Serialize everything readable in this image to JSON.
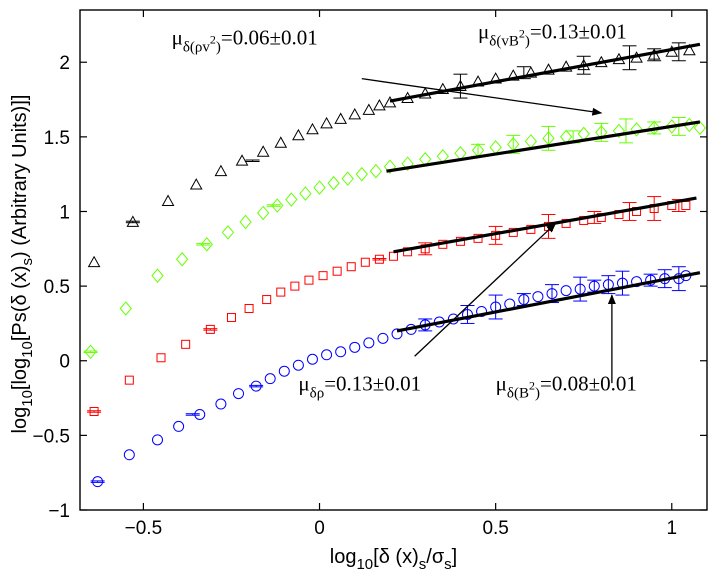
{
  "chart_data": {
    "type": "scatter",
    "xlabel": "log10[δ (x)s/σs]",
    "ylabel": "log10[log10[Ps(δ (x)s) (Arbitrary Units)]]",
    "xlim": [
      -0.68,
      1.1
    ],
    "ylim": [
      -1,
      2.35
    ],
    "xticks": [
      -0.5,
      0,
      0.5,
      1
    ],
    "xtick_labels": [
      "−0.5",
      "0",
      "0.5",
      "1"
    ],
    "yticks": [
      -1,
      -0.5,
      0,
      0.5,
      1,
      1.5,
      2
    ],
    "ytick_labels": [
      "−1",
      "−0.5",
      "0",
      "0.5",
      "1",
      "1.5",
      "2"
    ],
    "series": [
      {
        "name": "δ(vB²)",
        "marker": "triangle",
        "color": "#000000",
        "x": [
          -0.64,
          -0.53,
          -0.43,
          -0.35,
          -0.28,
          -0.22,
          -0.16,
          -0.11,
          -0.06,
          -0.02,
          0.02,
          0.06,
          0.1,
          0.14,
          0.17,
          0.2,
          0.25,
          0.3,
          0.35,
          0.4,
          0.45,
          0.5,
          0.55,
          0.6,
          0.65,
          0.7,
          0.75,
          0.8,
          0.85,
          0.9,
          0.95,
          1.0,
          1.05
        ],
        "y": [
          0.66,
          0.93,
          1.07,
          1.18,
          1.27,
          1.34,
          1.4,
          1.46,
          1.51,
          1.55,
          1.59,
          1.62,
          1.65,
          1.68,
          1.71,
          1.73,
          1.76,
          1.79,
          1.82,
          1.84,
          1.87,
          1.89,
          1.91,
          1.93,
          1.95,
          1.97,
          1.98,
          2.0,
          2.02,
          2.03,
          2.05,
          2.07,
          2.08
        ],
        "errorbar_x": [
          -0.53,
          -0.19,
          0.4,
          0.58,
          0.75,
          0.88,
          0.95,
          1.02
        ],
        "fit": {
          "x": [
            0.2,
            1.08
          ],
          "y": [
            1.74,
            2.12
          ]
        }
      },
      {
        "name": "δ(ρv²)",
        "marker": "diamond",
        "color": "#66ff00",
        "x": [
          -0.65,
          -0.55,
          -0.46,
          -0.39,
          -0.32,
          -0.26,
          -0.21,
          -0.16,
          -0.12,
          -0.08,
          -0.04,
          0.0,
          0.04,
          0.08,
          0.12,
          0.16,
          0.2,
          0.25,
          0.3,
          0.35,
          0.4,
          0.45,
          0.5,
          0.55,
          0.6,
          0.65,
          0.7,
          0.75,
          0.8,
          0.85,
          0.9,
          0.95,
          1.0,
          1.05,
          1.08
        ],
        "y": [
          0.06,
          0.35,
          0.57,
          0.68,
          0.78,
          0.86,
          0.93,
          0.99,
          1.04,
          1.08,
          1.12,
          1.16,
          1.19,
          1.22,
          1.25,
          1.27,
          1.3,
          1.32,
          1.35,
          1.37,
          1.39,
          1.41,
          1.43,
          1.45,
          1.47,
          1.49,
          1.5,
          1.52,
          1.53,
          1.54,
          1.55,
          1.56,
          1.57,
          1.58,
          1.56
        ],
        "errorbar_x": [
          -0.65,
          -0.33,
          -0.13,
          0.45,
          0.55,
          0.65,
          0.72,
          0.8,
          0.87,
          0.95,
          1.02
        ],
        "fit": {
          "x": [
            0.19,
            1.08
          ],
          "y": [
            1.27,
            1.6
          ]
        }
      },
      {
        "name": "δρ",
        "marker": "square",
        "color": "#ff0000",
        "x": [
          -0.64,
          -0.54,
          -0.45,
          -0.38,
          -0.31,
          -0.25,
          -0.2,
          -0.15,
          -0.11,
          -0.07,
          -0.03,
          0.01,
          0.05,
          0.09,
          0.13,
          0.17,
          0.21,
          0.25,
          0.3,
          0.35,
          0.4,
          0.45,
          0.5,
          0.55,
          0.6,
          0.65,
          0.7,
          0.75,
          0.8,
          0.85,
          0.9,
          0.95,
          1.0,
          1.04
        ],
        "y": [
          -0.34,
          -0.13,
          0.02,
          0.11,
          0.21,
          0.29,
          0.35,
          0.41,
          0.46,
          0.5,
          0.54,
          0.57,
          0.6,
          0.63,
          0.66,
          0.68,
          0.7,
          0.73,
          0.75,
          0.78,
          0.8,
          0.82,
          0.84,
          0.86,
          0.88,
          0.9,
          0.92,
          0.94,
          0.96,
          0.98,
          1.0,
          1.02,
          1.04,
          1.04
        ],
        "errorbar_x": [
          -0.64,
          -0.31,
          0.17,
          0.3,
          0.5,
          0.65,
          0.78,
          0.88,
          0.95,
          1.02
        ],
        "fit": {
          "x": [
            0.21,
            1.07
          ],
          "y": [
            0.73,
            1.09
          ]
        }
      },
      {
        "name": "δ(B²)",
        "marker": "circle",
        "color": "#0000ff",
        "x": [
          -0.63,
          -0.54,
          -0.46,
          -0.4,
          -0.34,
          -0.28,
          -0.23,
          -0.18,
          -0.14,
          -0.1,
          -0.06,
          -0.02,
          0.02,
          0.06,
          0.1,
          0.14,
          0.18,
          0.22,
          0.26,
          0.3,
          0.34,
          0.38,
          0.42,
          0.46,
          0.5,
          0.54,
          0.58,
          0.62,
          0.66,
          0.7,
          0.74,
          0.78,
          0.82,
          0.86,
          0.9,
          0.94,
          0.98,
          1.02,
          1.04
        ],
        "y": [
          -0.81,
          -0.63,
          -0.53,
          -0.44,
          -0.36,
          -0.29,
          -0.22,
          -0.17,
          -0.12,
          -0.07,
          -0.03,
          0.01,
          0.04,
          0.06,
          0.09,
          0.12,
          0.15,
          0.18,
          0.21,
          0.24,
          0.26,
          0.28,
          0.31,
          0.33,
          0.36,
          0.38,
          0.41,
          0.43,
          0.45,
          0.47,
          0.48,
          0.5,
          0.51,
          0.52,
          0.53,
          0.54,
          0.55,
          0.55,
          0.57
        ],
        "errorbar_x": [
          -0.63,
          -0.36,
          -0.18,
          0.3,
          0.42,
          0.5,
          0.58,
          0.66,
          0.74,
          0.78,
          0.82,
          0.86,
          0.94,
          0.98,
          1.02
        ],
        "fit": {
          "x": [
            0.22,
            1.08
          ],
          "y": [
            0.2,
            0.59
          ]
        }
      }
    ],
    "annotations": [
      {
        "id": "rhov2",
        "main": "μ",
        "sub": "δ(ρv²)",
        "suffix": "=0.06±0.01",
        "anchor": [
          -0.42,
          2.12
        ],
        "arrow_from": [
          0.12,
          1.89
        ],
        "arrow_to": [
          0.8,
          1.66
        ]
      },
      {
        "id": "vb2",
        "main": "μ",
        "sub": "δ(vB²)",
        "suffix": "=0.13±0.01",
        "anchor": [
          0.45,
          2.16
        ],
        "arrow_from": null,
        "arrow_to": null
      },
      {
        "id": "rho",
        "main": "μ",
        "sub": "δρ",
        "suffix": "=0.13±0.01",
        "anchor": [
          -0.06,
          -0.2
        ],
        "arrow_from": [
          0.27,
          0.03
        ],
        "arrow_to": [
          0.67,
          0.92
        ]
      },
      {
        "id": "b2",
        "main": "μ",
        "sub": "δ(B²)",
        "suffix": "=0.08±0.01",
        "anchor": [
          0.5,
          -0.2
        ],
        "arrow_from": [
          0.83,
          -0.15
        ],
        "arrow_to": [
          0.83,
          0.44
        ]
      }
    ]
  }
}
